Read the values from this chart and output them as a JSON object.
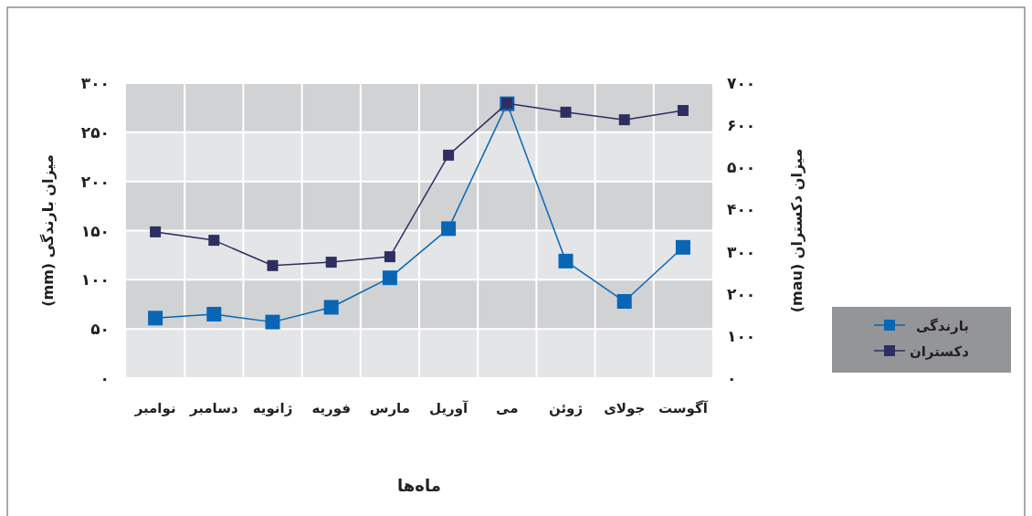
{
  "chart_data": {
    "type": "line",
    "xlabel": "ماه‌ها",
    "ylabel": "میزان بارندگی (mm)",
    "y2label": "میزان دکستران (mau)",
    "categories": [
      "نوامبر",
      "دسامبر",
      "ژانویه",
      "فوریه",
      "مارس",
      "آوریل",
      "می",
      "ژوئن",
      "جولای",
      "آگوست"
    ],
    "series": [
      {
        "name": "بارندگی",
        "color": "#0866b4",
        "values": [
          61,
          65,
          57,
          72,
          102,
          152,
          279,
          119,
          78,
          133
        ]
      },
      {
        "name": "دکستران",
        "color": "#2e2e62",
        "axis": "y2",
        "values": [
          347,
          327,
          267,
          275,
          288,
          529,
          652,
          631,
          613,
          635
        ]
      }
    ],
    "ylim": [
      0,
      300
    ],
    "yticks": [
      {
        "value": 0,
        "label": "۰"
      },
      {
        "value": 50,
        "label": "۵۰"
      },
      {
        "value": 100,
        "label": "۱۰۰"
      },
      {
        "value": 150,
        "label": "۱۵۰"
      },
      {
        "value": 200,
        "label": "۲۰۰"
      },
      {
        "value": 250,
        "label": "۲۵۰"
      },
      {
        "value": 300,
        "label": "۳۰۰"
      }
    ],
    "y2lim": [
      0,
      700
    ],
    "y2ticks": [
      {
        "value": 0,
        "label": "۰"
      },
      {
        "value": 100,
        "label": "۱۰۰"
      },
      {
        "value": 200,
        "label": "۲۰۰"
      },
      {
        "value": 300,
        "label": "۳۰۰"
      },
      {
        "value": 400,
        "label": "۴۰۰"
      },
      {
        "value": 500,
        "label": "۵۰۰"
      },
      {
        "value": 600,
        "label": "۶۰۰"
      },
      {
        "value": 700,
        "label": "۷۰۰"
      }
    ],
    "grid": true,
    "legend": "right",
    "marker": "square",
    "line_style": "solid"
  }
}
